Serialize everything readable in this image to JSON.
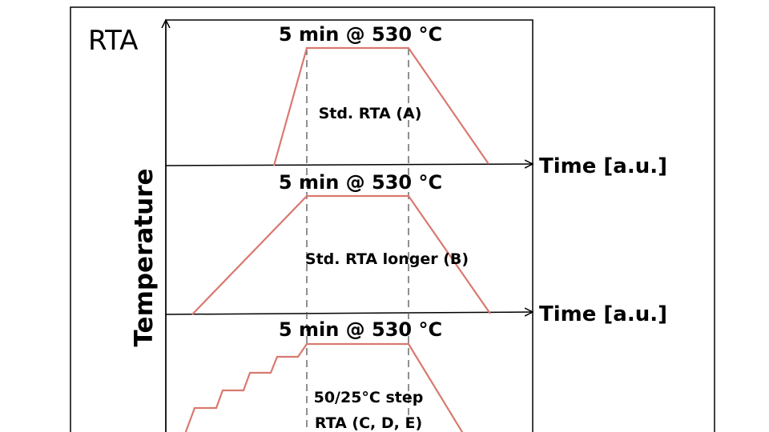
{
  "panel_label": "RTA",
  "y_axis_label": "Temperature",
  "x_axis_label": "Time [a.u.]",
  "colors": {
    "profile": "#d9796f",
    "axis": "#000000",
    "dashed": "#555555",
    "frame": "#000000"
  },
  "profiles": [
    {
      "hold_label": "5 min @ 530 °C",
      "name_lines": [
        "Std. RTA (A)"
      ],
      "x_axis_label": "Time [a.u.]"
    },
    {
      "hold_label": "5 min @ 530 °C",
      "name_lines": [
        "Std. RTA longer (B)"
      ],
      "x_axis_label": "Time [a.u.]"
    },
    {
      "hold_label": "5 min @ 530 °C",
      "name_lines": [
        "50/25°C step",
        "RTA (C, D, E)"
      ]
    }
  ]
}
